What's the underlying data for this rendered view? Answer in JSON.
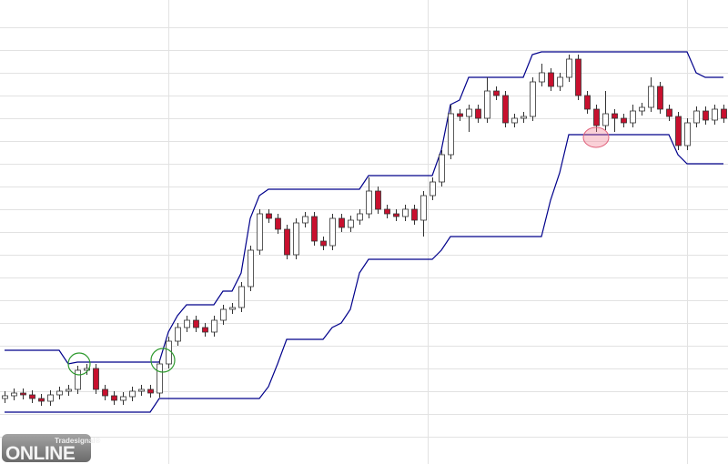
{
  "chart_data": {
    "type": "candlestick",
    "open": [
      7.2,
      7.5,
      7.8,
      7.6,
      7.2,
      6.9,
      7.6,
      8.0,
      8.2,
      10.3,
      10.5,
      8.2,
      7.5,
      7.0,
      7.4,
      8.0,
      8.2,
      7.8,
      11.0,
      13.5,
      15.0,
      15.8,
      15.0,
      14.5,
      15.8,
      17.0,
      17.2,
      19.5,
      23.5,
      27.5,
      27.0,
      25.8,
      23.0,
      26.5,
      27.2,
      24.5,
      24.0,
      27.0,
      26.0,
      26.8,
      27.5,
      30.0,
      28.0,
      27.5,
      27.2,
      28.0,
      26.8,
      29.5,
      31.0,
      34.0,
      38.5,
      38.2,
      39.0,
      38.0,
      41.0,
      40.5,
      37.5,
      38.0,
      38.2,
      42.0,
      43.0,
      41.5,
      42.5,
      44.5,
      40.5,
      39.0,
      37.2,
      38.5,
      38.0,
      37.5,
      38.8,
      39.2,
      41.5,
      39.0,
      38.2,
      35.0,
      37.5,
      38.8,
      37.8,
      39.0
    ],
    "high": [
      8.0,
      8.3,
      8.3,
      8.1,
      7.7,
      8.1,
      8.5,
      8.7,
      10.8,
      11.0,
      11.0,
      8.7,
      8.0,
      7.9,
      8.5,
      8.7,
      8.7,
      11.5,
      14.0,
      15.5,
      16.3,
      16.3,
      15.5,
      16.3,
      17.5,
      17.7,
      20.0,
      24.0,
      28.0,
      28.0,
      27.5,
      26.3,
      27.0,
      27.7,
      27.7,
      25.0,
      27.5,
      27.5,
      27.3,
      28.0,
      31.5,
      30.5,
      28.5,
      28.0,
      28.5,
      28.5,
      30.0,
      31.5,
      34.5,
      39.5,
      39.0,
      39.5,
      39.5,
      42.5,
      41.5,
      41.0,
      38.5,
      38.7,
      42.5,
      44.0,
      43.5,
      43.0,
      45.0,
      45.0,
      41.0,
      39.5,
      41.0,
      39.0,
      38.5,
      39.5,
      39.7,
      42.5,
      42.0,
      39.5,
      38.7,
      38.0,
      39.3,
      39.3,
      39.5,
      39.5
    ],
    "low": [
      6.7,
      7.0,
      7.1,
      6.7,
      6.4,
      6.4,
      7.1,
      7.5,
      7.7,
      9.8,
      7.7,
      7.0,
      6.5,
      6.5,
      6.9,
      7.5,
      7.3,
      7.3,
      10.5,
      13.0,
      14.5,
      14.5,
      14.0,
      14.0,
      15.3,
      16.5,
      16.7,
      19.0,
      23.0,
      26.5,
      25.3,
      22.5,
      22.5,
      26.0,
      24.0,
      23.5,
      23.5,
      25.5,
      25.5,
      26.3,
      27.0,
      27.5,
      27.0,
      26.7,
      26.7,
      26.3,
      25.0,
      29.0,
      30.5,
      33.5,
      37.7,
      36.5,
      37.5,
      37.5,
      40.0,
      37.0,
      37.0,
      37.5,
      37.7,
      41.5,
      41.0,
      41.0,
      42.0,
      40.0,
      38.5,
      36.5,
      36.7,
      36.5,
      37.0,
      37.0,
      38.3,
      38.7,
      38.5,
      37.7,
      34.5,
      34.5,
      37.0,
      37.3,
      37.3,
      37.5
    ],
    "close": [
      7.5,
      7.8,
      7.6,
      7.2,
      6.9,
      7.6,
      8.0,
      8.2,
      10.3,
      10.5,
      8.2,
      7.5,
      7.0,
      7.4,
      8.0,
      8.2,
      7.8,
      11.0,
      13.5,
      15.0,
      15.8,
      15.0,
      14.5,
      15.8,
      17.0,
      17.2,
      19.5,
      23.5,
      27.5,
      27.0,
      25.8,
      23.0,
      26.5,
      27.2,
      24.5,
      24.0,
      27.0,
      26.0,
      26.8,
      27.5,
      30.0,
      28.0,
      27.5,
      27.2,
      28.0,
      26.8,
      29.5,
      31.0,
      34.0,
      38.5,
      38.2,
      39.0,
      38.0,
      41.0,
      40.5,
      37.5,
      38.0,
      38.2,
      42.0,
      43.0,
      41.5,
      42.5,
      44.5,
      40.5,
      39.0,
      37.2,
      38.5,
      38.0,
      37.5,
      38.8,
      39.2,
      41.5,
      39.0,
      38.2,
      35.0,
      37.5,
      38.8,
      37.8,
      39.0,
      38.0
    ],
    "upper_band": {
      "color": "#00008b",
      "values": [
        12.5,
        12.5,
        12.5,
        12.5,
        12.5,
        12.5,
        12.5,
        11.0,
        11.2,
        11.2,
        11.2,
        11.2,
        11.2,
        11.2,
        11.2,
        11.2,
        11.2,
        11.2,
        14.5,
        16.3,
        17.5,
        17.5,
        17.5,
        17.5,
        19.0,
        19.0,
        21.0,
        27.0,
        29.5,
        30.2,
        30.2,
        30.2,
        30.2,
        30.2,
        30.2,
        30.2,
        30.2,
        30.2,
        30.2,
        30.2,
        31.7,
        31.7,
        31.7,
        31.7,
        31.7,
        31.7,
        31.7,
        31.7,
        34.5,
        39.5,
        40.0,
        42.5,
        42.5,
        42.5,
        42.5,
        42.5,
        42.5,
        42.5,
        45.0,
        45.3,
        45.3,
        45.3,
        45.3,
        45.3,
        45.3,
        45.3,
        45.3,
        45.3,
        45.3,
        45.3,
        45.3,
        45.3,
        45.3,
        45.3,
        45.3,
        45.3,
        43.0,
        42.5,
        42.5,
        42.5
      ]
    },
    "lower_band": {
      "color": "#00008b",
      "values": [
        5.7,
        5.7,
        5.7,
        5.7,
        5.7,
        5.7,
        5.7,
        5.7,
        5.7,
        5.7,
        5.7,
        5.7,
        5.7,
        5.7,
        5.7,
        5.7,
        5.7,
        7.2,
        7.2,
        7.2,
        7.2,
        7.2,
        7.2,
        7.2,
        7.2,
        7.2,
        7.2,
        7.2,
        7.2,
        8.5,
        11.0,
        13.7,
        13.7,
        13.7,
        13.7,
        13.7,
        15.0,
        15.5,
        17.0,
        21.0,
        22.5,
        22.5,
        22.5,
        22.5,
        22.5,
        22.5,
        22.5,
        22.5,
        23.5,
        25.0,
        25.0,
        25.0,
        25.0,
        25.0,
        25.0,
        25.0,
        25.0,
        25.0,
        25.0,
        25.0,
        29.0,
        32.0,
        36.2,
        36.2,
        36.2,
        36.2,
        36.2,
        36.2,
        36.2,
        36.2,
        36.2,
        36.2,
        36.2,
        36.2,
        34.0,
        33.0,
        33.0,
        33.0,
        33.0,
        33.0
      ]
    },
    "up_color": "#ffffff",
    "down_color": "#c8102e",
    "xlim": [
      -0.5,
      79.5
    ],
    "xticks": [
      18,
      46.5,
      75
    ],
    "ylim": [
      0,
      51
    ],
    "yticks": [
      3,
      5.5,
      8,
      10.5,
      13,
      15.5,
      18,
      20.5,
      23,
      25.5,
      28,
      30.5,
      33,
      35.5,
      38,
      40.5,
      43,
      45.5,
      48
    ],
    "grid": true,
    "watermark": {
      "brand": "Tradesignal®",
      "product": "OnLine"
    }
  }
}
